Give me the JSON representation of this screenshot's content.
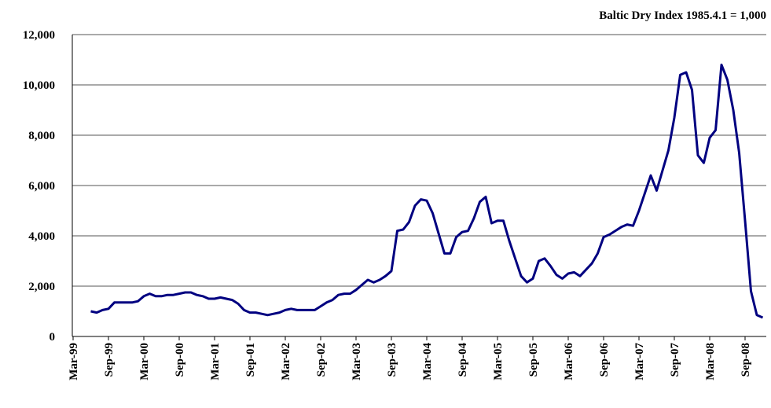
{
  "chart_data": {
    "type": "line",
    "title": "Baltic Dry Index 1985.4.1 = 1,000",
    "categories": [
      "Mar-99",
      null,
      null,
      null,
      null,
      null,
      "Sep-99",
      null,
      null,
      null,
      null,
      null,
      "Mar-00",
      null,
      null,
      null,
      null,
      null,
      "Sep-00",
      null,
      null,
      null,
      null,
      null,
      "Mar-01",
      null,
      null,
      null,
      null,
      null,
      "Sep-01",
      null,
      null,
      null,
      null,
      null,
      "Mar-02",
      null,
      null,
      null,
      null,
      null,
      "Sep-02",
      null,
      null,
      null,
      null,
      null,
      "Mar-03",
      null,
      null,
      null,
      null,
      null,
      "Sep-03",
      null,
      null,
      null,
      null,
      null,
      "Mar-04",
      null,
      null,
      null,
      null,
      null,
      "Sep-04",
      null,
      null,
      null,
      null,
      null,
      "Mar-05",
      null,
      null,
      null,
      null,
      null,
      "Sep-05",
      null,
      null,
      null,
      null,
      null,
      "Mar-06",
      null,
      null,
      null,
      null,
      null,
      "Sep-06",
      null,
      null,
      null,
      null,
      null,
      "Mar-07",
      null,
      null,
      null,
      null,
      null,
      "Sep-07",
      null,
      null,
      null,
      null,
      null,
      "Mar-08",
      null,
      null,
      null,
      null,
      null,
      "Sep-08",
      null,
      null,
      null
    ],
    "series": [
      {
        "color": "#000080",
        "values": [
          null,
          null,
          null,
          1000,
          950,
          1050,
          1100,
          1350,
          1350,
          1350,
          1350,
          1400,
          1600,
          1700,
          1600,
          1600,
          1650,
          1650,
          1700,
          1750,
          1750,
          1650,
          1600,
          1500,
          1500,
          1550,
          1500,
          1450,
          1300,
          1050,
          950,
          950,
          900,
          850,
          900,
          950,
          1050,
          1100,
          1050,
          1050,
          1050,
          1050,
          1200,
          1350,
          1450,
          1650,
          1700,
          1700,
          1850,
          2050,
          2250,
          2150,
          2250,
          2400,
          2600,
          4200,
          4250,
          4550,
          5200,
          5450,
          5400,
          4900,
          4100,
          3300,
          3300,
          3950,
          4150,
          4200,
          4700,
          5350,
          5550,
          4500,
          4600,
          4600,
          3800,
          3100,
          2400,
          2150,
          2300,
          3000,
          3100,
          2800,
          2450,
          2300,
          2500,
          2550,
          2400,
          2650,
          2900,
          3300,
          3950,
          4050,
          4200,
          4350,
          4450,
          4400,
          5000,
          5700,
          6400,
          5800,
          6600,
          7400,
          8700,
          10400,
          10500,
          9800,
          7200,
          6900,
          7900,
          8200,
          10800,
          10200,
          9000,
          7300,
          4600,
          1800,
          850,
          750
        ]
      }
    ],
    "ylim": [
      0,
      12000
    ],
    "yticks": [
      0,
      {
        "value": 2000,
        "label": "2,000"
      },
      {
        "value": 4000,
        "label": "4,000"
      },
      {
        "value": 6000,
        "label": "6,000"
      },
      {
        "value": 8000,
        "label": "8,000"
      },
      {
        "value": 10000,
        "label": "10,000"
      },
      {
        "value": 12000,
        "label": "12,000"
      }
    ],
    "grid": true
  }
}
